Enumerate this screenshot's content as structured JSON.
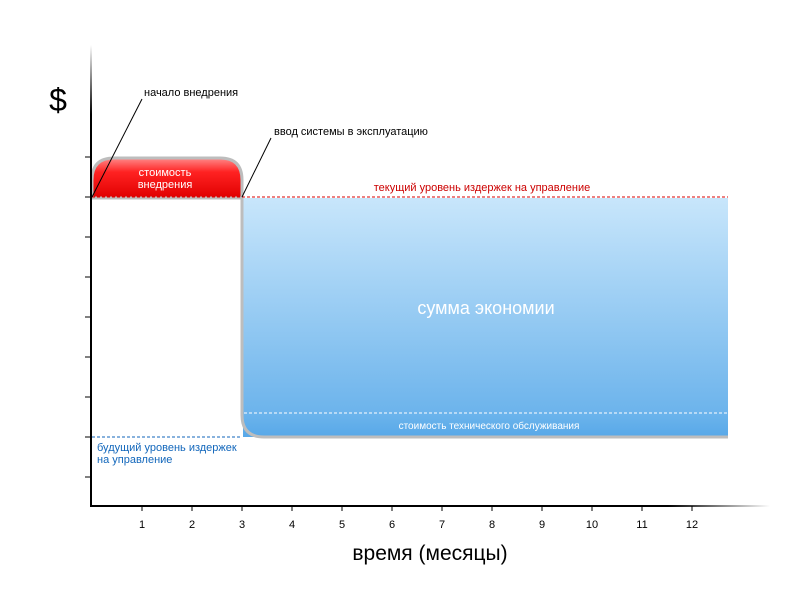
{
  "chart_data": {
    "type": "area",
    "xlabel": "время (месяцы)",
    "ylabel": "$",
    "x_ticks": [
      1,
      2,
      3,
      4,
      5,
      6,
      7,
      8,
      9,
      10,
      11,
      12
    ],
    "xlim": [
      0,
      12.7
    ],
    "annotations": {
      "start": "начало внедрения",
      "launch": "ввод системы в эксплуатацию",
      "implementation_cost": [
        "стоимость",
        "внедрения"
      ],
      "current_level": "текущий уровень издержек на управление",
      "savings": "сумма экономии",
      "maintenance": "стоимость технического обслуживания",
      "future_level": [
        "будущий уровень издержек",
        "на управление"
      ]
    },
    "milestones": {
      "start_month": 0,
      "launch_month": 3
    },
    "colors": {
      "implementation": "#ee1111",
      "savings_top": "#c8e6fb",
      "savings_bottom": "#62aeea",
      "current_line": "#dd0000",
      "future_line": "#1166bb"
    }
  }
}
